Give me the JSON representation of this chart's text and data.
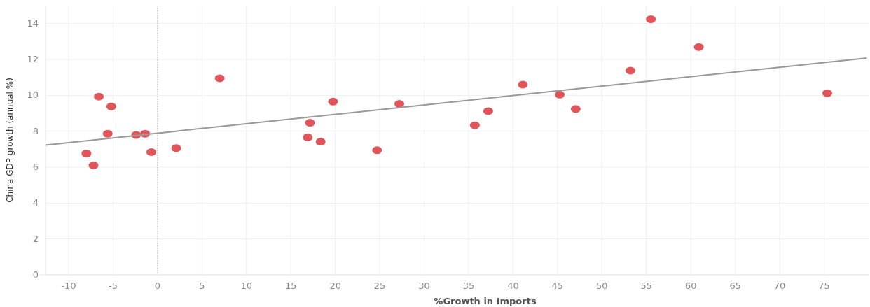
{
  "chart_data": {
    "type": "scatter",
    "xlabel": "%Growth in Imports",
    "ylabel": "China GDP growth (annual %)",
    "xlim": [
      -12.6,
      80
    ],
    "ylim": [
      0,
      15
    ],
    "xticks": [
      -10,
      -5,
      0,
      5,
      10,
      15,
      20,
      25,
      30,
      35,
      40,
      45,
      50,
      55,
      60,
      65,
      70,
      75
    ],
    "yticks": [
      0,
      2,
      4,
      6,
      8,
      10,
      12,
      14
    ],
    "grid": true,
    "ref_lines": [
      {
        "axis": "x",
        "value": 0,
        "color": "#bbbbbb",
        "line_style": "dotted"
      }
    ],
    "series": [
      {
        "marker": "circle",
        "color": "#e05559",
        "x": [
          -8.0,
          -7.2,
          -6.6,
          -5.2,
          -5.6,
          -2.4,
          -1.4,
          -0.7,
          2.1,
          7.0,
          17.15,
          16.9,
          18.35,
          19.75,
          24.7,
          27.2,
          35.7,
          37.2,
          41.1,
          45.25,
          47.05,
          53.2,
          55.5,
          60.9,
          75.35
        ],
        "values": [
          6.76,
          6.1,
          9.93,
          9.38,
          7.86,
          7.79,
          7.86,
          6.84,
          7.06,
          10.95,
          8.47,
          7.66,
          7.42,
          9.65,
          6.94,
          9.53,
          8.33,
          9.12,
          10.6,
          10.04,
          9.24,
          11.38,
          14.24,
          12.69,
          10.12
        ]
      },
      {
        "type": "line",
        "color": "#999999",
        "x": [
          -12.6,
          79.8
        ],
        "values": [
          7.23,
          12.08
        ]
      }
    ]
  }
}
